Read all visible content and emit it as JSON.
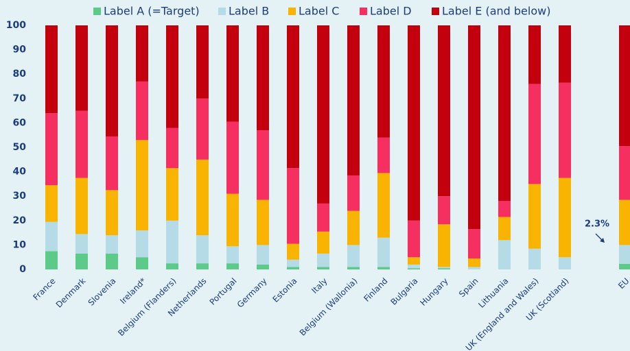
{
  "chart_data": {
    "type": "stacked_bar",
    "categories": [
      "France",
      "Denmark",
      "Slovenia",
      "Ireland*",
      "Belgium (Flanders)",
      "Netherlands",
      "Portugal",
      "Germany",
      "Estonia",
      "Italy",
      "Belgium (Wallonia)",
      "Finland",
      "Bulgaria",
      "Hungary",
      "Spain",
      "Lithuania",
      "UK (England and Wales)",
      "UK (Scotland)",
      null,
      "EU"
    ],
    "series": [
      {
        "name": "Label A (=Target)",
        "color": "#5ccb8a",
        "values": [
          7.5,
          6.5,
          6.5,
          5,
          2.5,
          2.5,
          2.5,
          2,
          1,
          1,
          1,
          1,
          0.5,
          0.5,
          0,
          0,
          0,
          0,
          null,
          2.3
        ]
      },
      {
        "name": "Label B",
        "color": "#b5dbe6",
        "values": [
          12,
          8,
          7.5,
          11,
          17.5,
          11.5,
          7,
          8,
          3,
          5.5,
          9,
          12,
          1.5,
          0.5,
          1,
          12,
          8.5,
          5,
          null,
          7.7
        ]
      },
      {
        "name": "Label C",
        "color": "#f8b400",
        "values": [
          15,
          23,
          18.5,
          37,
          21.5,
          31,
          21.5,
          18.5,
          6.5,
          9,
          14,
          26.5,
          3,
          17.5,
          3.5,
          9.5,
          26.5,
          32.5,
          null,
          18.5
        ]
      },
      {
        "name": "Label D",
        "color": "#f52f5f",
        "values": [
          29.5,
          27.5,
          22,
          24,
          16.5,
          25,
          29.5,
          28.5,
          31,
          11.5,
          14.5,
          14.5,
          15,
          11.5,
          12,
          6.5,
          41,
          39,
          null,
          22
        ]
      },
      {
        "name": "Label E (and below)",
        "color": "#c2000e",
        "values": [
          36,
          35,
          45.5,
          23,
          42,
          30,
          39.5,
          43,
          58.5,
          73,
          61.5,
          46,
          80,
          70,
          83.5,
          72,
          24,
          23.5,
          null,
          49.5
        ]
      }
    ],
    "ylim": [
      0,
      100
    ],
    "yticks": [
      0,
      10,
      20,
      30,
      40,
      50,
      60,
      70,
      80,
      90,
      100
    ],
    "annotations": [
      "2.3%"
    ],
    "legend": "top"
  }
}
